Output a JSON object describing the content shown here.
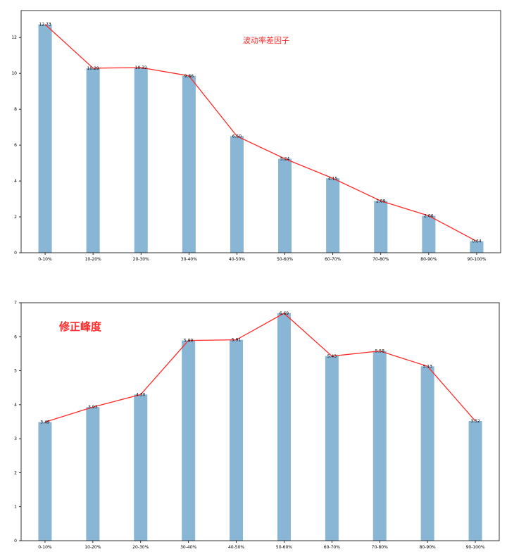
{
  "chart_data": [
    {
      "type": "bar",
      "title": "波动率差因子",
      "categories": [
        "0-10%",
        "10-20%",
        "20-30%",
        "30-40%",
        "40-50%",
        "50-60%",
        "60-70%",
        "70-80%",
        "80-90%",
        "90-100%"
      ],
      "values": [
        12.73,
        10.29,
        10.32,
        9.86,
        6.5,
        5.24,
        4.15,
        2.89,
        2.06,
        0.64
      ],
      "data_labels": [
        "12.73",
        "10.29",
        "10.32",
        "9.86",
        "6.50",
        "5.24",
        "4.15",
        "2.89",
        "2.06",
        "0.64"
      ],
      "overlay_line": true,
      "ylim": [
        0,
        13.5
      ],
      "yticks": [
        0,
        2,
        4,
        6,
        8,
        10,
        12
      ],
      "bar_color": "#8ab6d6",
      "line_color": "#ff2a2a",
      "grid": false
    },
    {
      "type": "bar",
      "title": "修正峰度",
      "categories": [
        "0-10%",
        "10-20%",
        "20-30%",
        "30-40%",
        "40-50%",
        "50-60%",
        "60-70%",
        "70-80%",
        "80-90%",
        "90-100%"
      ],
      "values": [
        3.49,
        3.93,
        4.3,
        5.89,
        5.91,
        6.69,
        5.43,
        5.58,
        5.13,
        3.52
      ],
      "data_labels": [
        "3.49",
        "3.93",
        "4.30",
        "5.89",
        "5.91",
        "6.69",
        "5.43",
        "5.58",
        "5.13",
        "3.52"
      ],
      "overlay_line": true,
      "ylim": [
        0,
        7
      ],
      "yticks": [
        0,
        1,
        2,
        3,
        4,
        5,
        6,
        7
      ],
      "bar_color": "#8ab6d6",
      "line_color": "#ff2a2a",
      "grid": false
    }
  ]
}
